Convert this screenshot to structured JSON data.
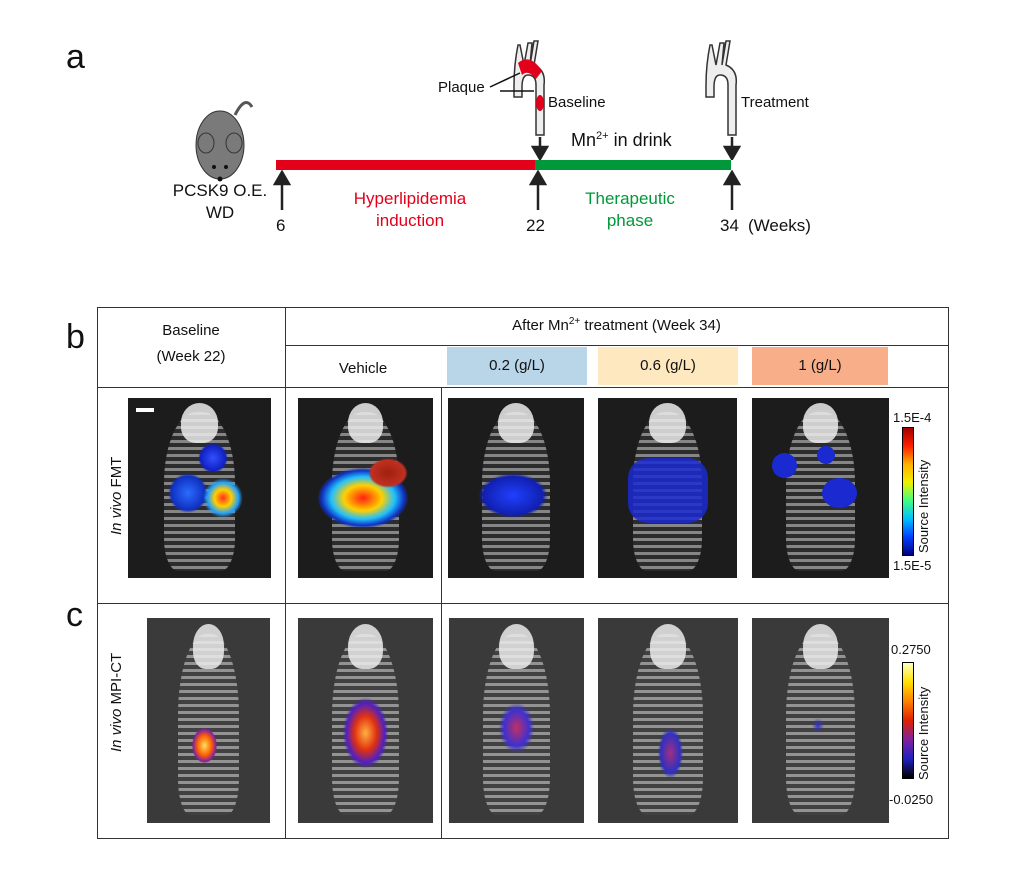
{
  "panels": {
    "a": "a",
    "b": "b",
    "c": "c"
  },
  "timeline": {
    "model": [
      "PCSK9 O.E.",
      "WD"
    ],
    "weeks": [
      "6",
      "22",
      "34"
    ],
    "weeks_unit": "(Weeks)",
    "phase1": [
      "Hyperlipidemia",
      "induction"
    ],
    "phase2": [
      "Therapeutic",
      "phase"
    ],
    "drink": "Mn",
    "drink_sup": "2+",
    "drink_rest": " in drink",
    "plaque": "Plaque",
    "baseline": "Baseline",
    "treatment": "Treatment",
    "colors": {
      "induction": "#e3001b",
      "therapeutic": "#00983a"
    }
  },
  "table": {
    "baseline_header": [
      "Baseline",
      "(Week 22)"
    ],
    "after_header_pre": "After Mn",
    "after_header_sup": "2+",
    "after_header_post": " treatment (Week 34)",
    "groups": [
      {
        "label": "Vehicle",
        "color": "#ffffff"
      },
      {
        "label": "0.2 (g/L)",
        "color": "#b9d5e8"
      },
      {
        "label": "0.6 (g/L)",
        "color": "#fde8bf"
      },
      {
        "label": "1 (g/L)",
        "color": "#f8ae88"
      }
    ],
    "row_b": {
      "italic": "In vivo",
      "label": " FMT",
      "cbar_max": "1.5E-4",
      "cbar_min": "1.5E-5",
      "cbar_title": "Source Intensity"
    },
    "row_c": {
      "italic": "In vivo",
      "label": " MPI-CT",
      "cbar_max": "0.2750",
      "cbar_min": "-0.0250",
      "cbar_title": "Source Intensity"
    }
  }
}
